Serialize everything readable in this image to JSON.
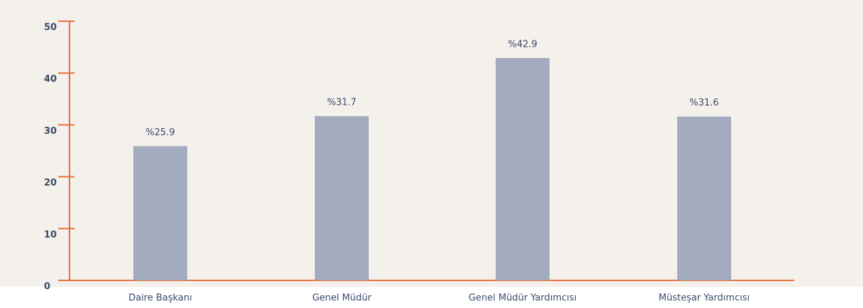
{
  "chart_data": {
    "type": "bar",
    "categories": [
      "Daire Başkanı",
      "Genel Müdür",
      "Genel Müdür Yardımcısı",
      "Müsteşar Yardımcısı"
    ],
    "values": [
      25.9,
      31.7,
      42.9,
      31.6
    ],
    "value_labels": [
      "%25.9",
      "%31.7",
      "%42.9",
      "%31.6"
    ],
    "color": "#a3acbe",
    "axis_color": "#e8703a",
    "ylim": [
      0,
      50
    ],
    "yticks": [
      0,
      10,
      20,
      30,
      40,
      50
    ]
  }
}
